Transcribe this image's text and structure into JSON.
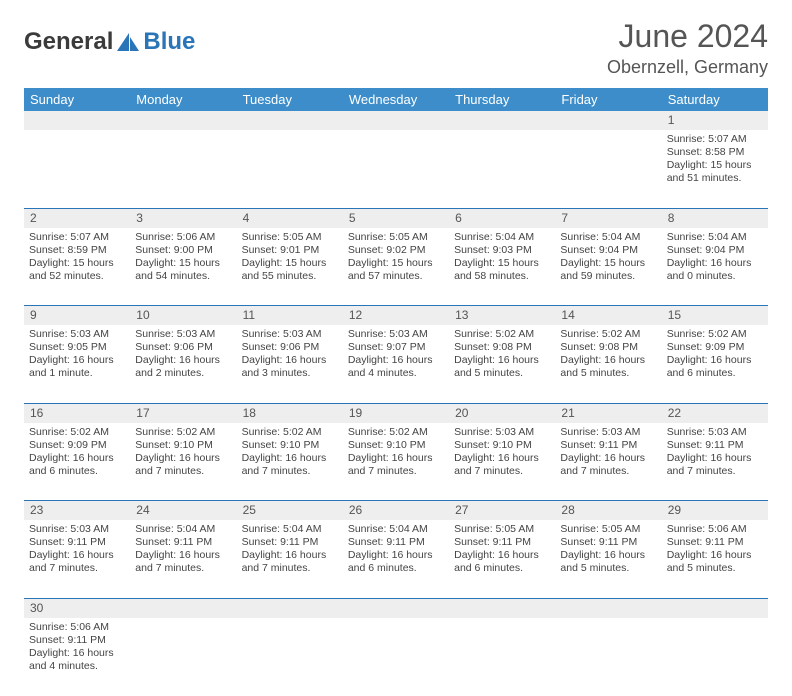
{
  "logo": {
    "text_general": "General",
    "text_blue": "Blue"
  },
  "title": "June 2024",
  "location": "Obernzell, Germany",
  "colors": {
    "header_bg": "#3c8dca",
    "header_text": "#ffffff",
    "daynum_bg": "#eeeeee",
    "row_border": "#2a74b8",
    "logo_gray": "#3b3b3b",
    "logo_blue": "#2a74b8"
  },
  "weekdays": [
    "Sunday",
    "Monday",
    "Tuesday",
    "Wednesday",
    "Thursday",
    "Friday",
    "Saturday"
  ],
  "weeks": [
    {
      "nums": [
        "",
        "",
        "",
        "",
        "",
        "",
        "1"
      ],
      "cells": [
        {},
        {},
        {},
        {},
        {},
        {},
        {
          "sunrise": "Sunrise: 5:07 AM",
          "sunset": "Sunset: 8:58 PM",
          "day1": "Daylight: 15 hours",
          "day2": "and 51 minutes."
        }
      ]
    },
    {
      "nums": [
        "2",
        "3",
        "4",
        "5",
        "6",
        "7",
        "8"
      ],
      "cells": [
        {
          "sunrise": "Sunrise: 5:07 AM",
          "sunset": "Sunset: 8:59 PM",
          "day1": "Daylight: 15 hours",
          "day2": "and 52 minutes."
        },
        {
          "sunrise": "Sunrise: 5:06 AM",
          "sunset": "Sunset: 9:00 PM",
          "day1": "Daylight: 15 hours",
          "day2": "and 54 minutes."
        },
        {
          "sunrise": "Sunrise: 5:05 AM",
          "sunset": "Sunset: 9:01 PM",
          "day1": "Daylight: 15 hours",
          "day2": "and 55 minutes."
        },
        {
          "sunrise": "Sunrise: 5:05 AM",
          "sunset": "Sunset: 9:02 PM",
          "day1": "Daylight: 15 hours",
          "day2": "and 57 minutes."
        },
        {
          "sunrise": "Sunrise: 5:04 AM",
          "sunset": "Sunset: 9:03 PM",
          "day1": "Daylight: 15 hours",
          "day2": "and 58 minutes."
        },
        {
          "sunrise": "Sunrise: 5:04 AM",
          "sunset": "Sunset: 9:04 PM",
          "day1": "Daylight: 15 hours",
          "day2": "and 59 minutes."
        },
        {
          "sunrise": "Sunrise: 5:04 AM",
          "sunset": "Sunset: 9:04 PM",
          "day1": "Daylight: 16 hours",
          "day2": "and 0 minutes."
        }
      ]
    },
    {
      "nums": [
        "9",
        "10",
        "11",
        "12",
        "13",
        "14",
        "15"
      ],
      "cells": [
        {
          "sunrise": "Sunrise: 5:03 AM",
          "sunset": "Sunset: 9:05 PM",
          "day1": "Daylight: 16 hours",
          "day2": "and 1 minute."
        },
        {
          "sunrise": "Sunrise: 5:03 AM",
          "sunset": "Sunset: 9:06 PM",
          "day1": "Daylight: 16 hours",
          "day2": "and 2 minutes."
        },
        {
          "sunrise": "Sunrise: 5:03 AM",
          "sunset": "Sunset: 9:06 PM",
          "day1": "Daylight: 16 hours",
          "day2": "and 3 minutes."
        },
        {
          "sunrise": "Sunrise: 5:03 AM",
          "sunset": "Sunset: 9:07 PM",
          "day1": "Daylight: 16 hours",
          "day2": "and 4 minutes."
        },
        {
          "sunrise": "Sunrise: 5:02 AM",
          "sunset": "Sunset: 9:08 PM",
          "day1": "Daylight: 16 hours",
          "day2": "and 5 minutes."
        },
        {
          "sunrise": "Sunrise: 5:02 AM",
          "sunset": "Sunset: 9:08 PM",
          "day1": "Daylight: 16 hours",
          "day2": "and 5 minutes."
        },
        {
          "sunrise": "Sunrise: 5:02 AM",
          "sunset": "Sunset: 9:09 PM",
          "day1": "Daylight: 16 hours",
          "day2": "and 6 minutes."
        }
      ]
    },
    {
      "nums": [
        "16",
        "17",
        "18",
        "19",
        "20",
        "21",
        "22"
      ],
      "cells": [
        {
          "sunrise": "Sunrise: 5:02 AM",
          "sunset": "Sunset: 9:09 PM",
          "day1": "Daylight: 16 hours",
          "day2": "and 6 minutes."
        },
        {
          "sunrise": "Sunrise: 5:02 AM",
          "sunset": "Sunset: 9:10 PM",
          "day1": "Daylight: 16 hours",
          "day2": "and 7 minutes."
        },
        {
          "sunrise": "Sunrise: 5:02 AM",
          "sunset": "Sunset: 9:10 PM",
          "day1": "Daylight: 16 hours",
          "day2": "and 7 minutes."
        },
        {
          "sunrise": "Sunrise: 5:02 AM",
          "sunset": "Sunset: 9:10 PM",
          "day1": "Daylight: 16 hours",
          "day2": "and 7 minutes."
        },
        {
          "sunrise": "Sunrise: 5:03 AM",
          "sunset": "Sunset: 9:10 PM",
          "day1": "Daylight: 16 hours",
          "day2": "and 7 minutes."
        },
        {
          "sunrise": "Sunrise: 5:03 AM",
          "sunset": "Sunset: 9:11 PM",
          "day1": "Daylight: 16 hours",
          "day2": "and 7 minutes."
        },
        {
          "sunrise": "Sunrise: 5:03 AM",
          "sunset": "Sunset: 9:11 PM",
          "day1": "Daylight: 16 hours",
          "day2": "and 7 minutes."
        }
      ]
    },
    {
      "nums": [
        "23",
        "24",
        "25",
        "26",
        "27",
        "28",
        "29"
      ],
      "cells": [
        {
          "sunrise": "Sunrise: 5:03 AM",
          "sunset": "Sunset: 9:11 PM",
          "day1": "Daylight: 16 hours",
          "day2": "and 7 minutes."
        },
        {
          "sunrise": "Sunrise: 5:04 AM",
          "sunset": "Sunset: 9:11 PM",
          "day1": "Daylight: 16 hours",
          "day2": "and 7 minutes."
        },
        {
          "sunrise": "Sunrise: 5:04 AM",
          "sunset": "Sunset: 9:11 PM",
          "day1": "Daylight: 16 hours",
          "day2": "and 7 minutes."
        },
        {
          "sunrise": "Sunrise: 5:04 AM",
          "sunset": "Sunset: 9:11 PM",
          "day1": "Daylight: 16 hours",
          "day2": "and 6 minutes."
        },
        {
          "sunrise": "Sunrise: 5:05 AM",
          "sunset": "Sunset: 9:11 PM",
          "day1": "Daylight: 16 hours",
          "day2": "and 6 minutes."
        },
        {
          "sunrise": "Sunrise: 5:05 AM",
          "sunset": "Sunset: 9:11 PM",
          "day1": "Daylight: 16 hours",
          "day2": "and 5 minutes."
        },
        {
          "sunrise": "Sunrise: 5:06 AM",
          "sunset": "Sunset: 9:11 PM",
          "day1": "Daylight: 16 hours",
          "day2": "and 5 minutes."
        }
      ]
    },
    {
      "nums": [
        "30",
        "",
        "",
        "",
        "",
        "",
        ""
      ],
      "cells": [
        {
          "sunrise": "Sunrise: 5:06 AM",
          "sunset": "Sunset: 9:11 PM",
          "day1": "Daylight: 16 hours",
          "day2": "and 4 minutes."
        },
        {},
        {},
        {},
        {},
        {},
        {}
      ]
    }
  ]
}
